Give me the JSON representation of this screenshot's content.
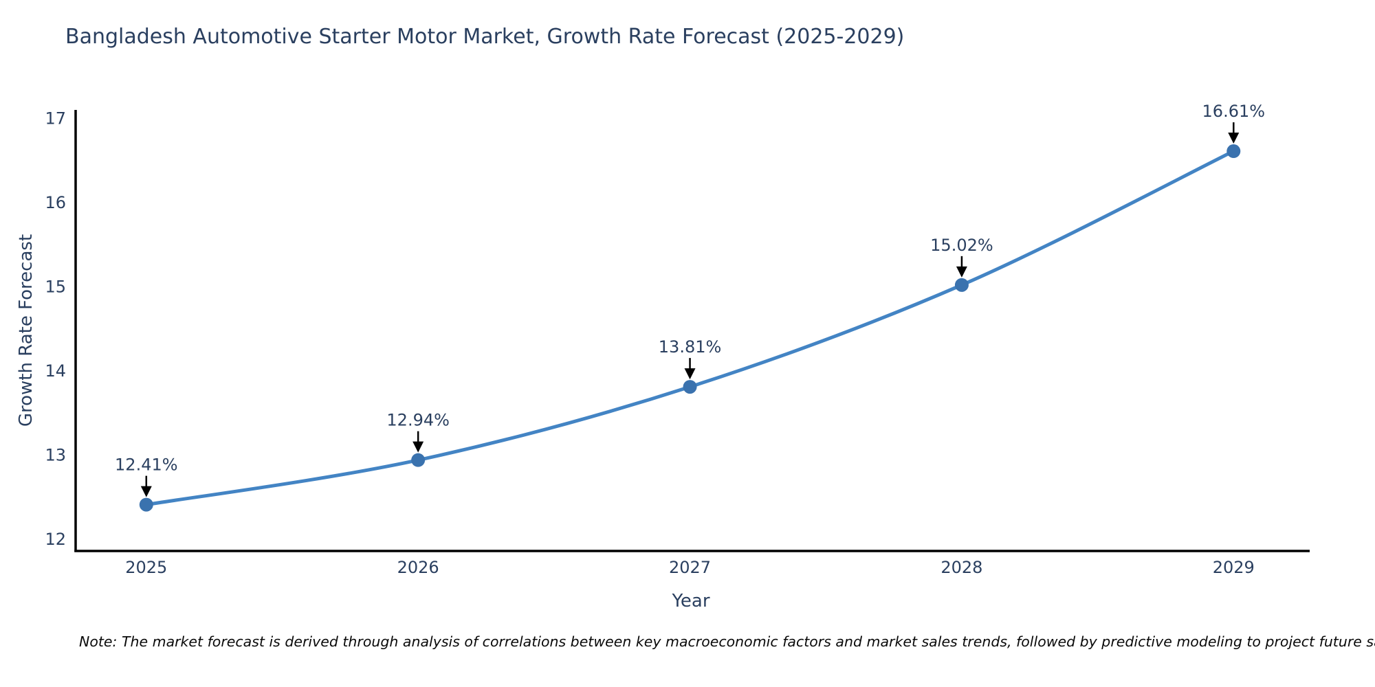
{
  "page": {
    "background_color": "#ffffff"
  },
  "header": {
    "title": "Bangladesh Automotive Starter Motor Market, Growth Rate Forecast (2025-2029)"
  },
  "footnote": {
    "text": "Note: The market forecast is derived through analysis of correlations between key macroeconomic factors and market sales trends, followed by predictive modeling to project future sales"
  },
  "chart_data": {
    "type": "line",
    "title": "Bangladesh Automotive Starter Motor Market, Growth Rate Forecast (2025-2029)",
    "xlabel": "Year",
    "ylabel": "Growth Rate Forecast",
    "x": [
      2025,
      2026,
      2027,
      2028,
      2029
    ],
    "y": [
      12.41,
      12.94,
      13.81,
      15.02,
      16.61
    ],
    "point_labels": [
      "12.41%",
      "12.94%",
      "13.81%",
      "15.02%",
      "16.61%"
    ],
    "x_tick_labels": [
      "2025",
      "2026",
      "2027",
      "2028",
      "2029"
    ],
    "y_tick_values": [
      12,
      13,
      14,
      15,
      16,
      17
    ],
    "xlim": [
      2024.74,
      2029.28
    ],
    "ylim": [
      11.86,
      17.1
    ],
    "grid": false,
    "legend": "none",
    "curve": "spline",
    "line_color": "#4384c4",
    "marker_color": "#3a72ae",
    "axis_line_color": "#000000",
    "tick_text_color": "#2a3f5f",
    "annotation_text_color": "#2a3f5f",
    "annotation_arrow_color": "#000000"
  }
}
